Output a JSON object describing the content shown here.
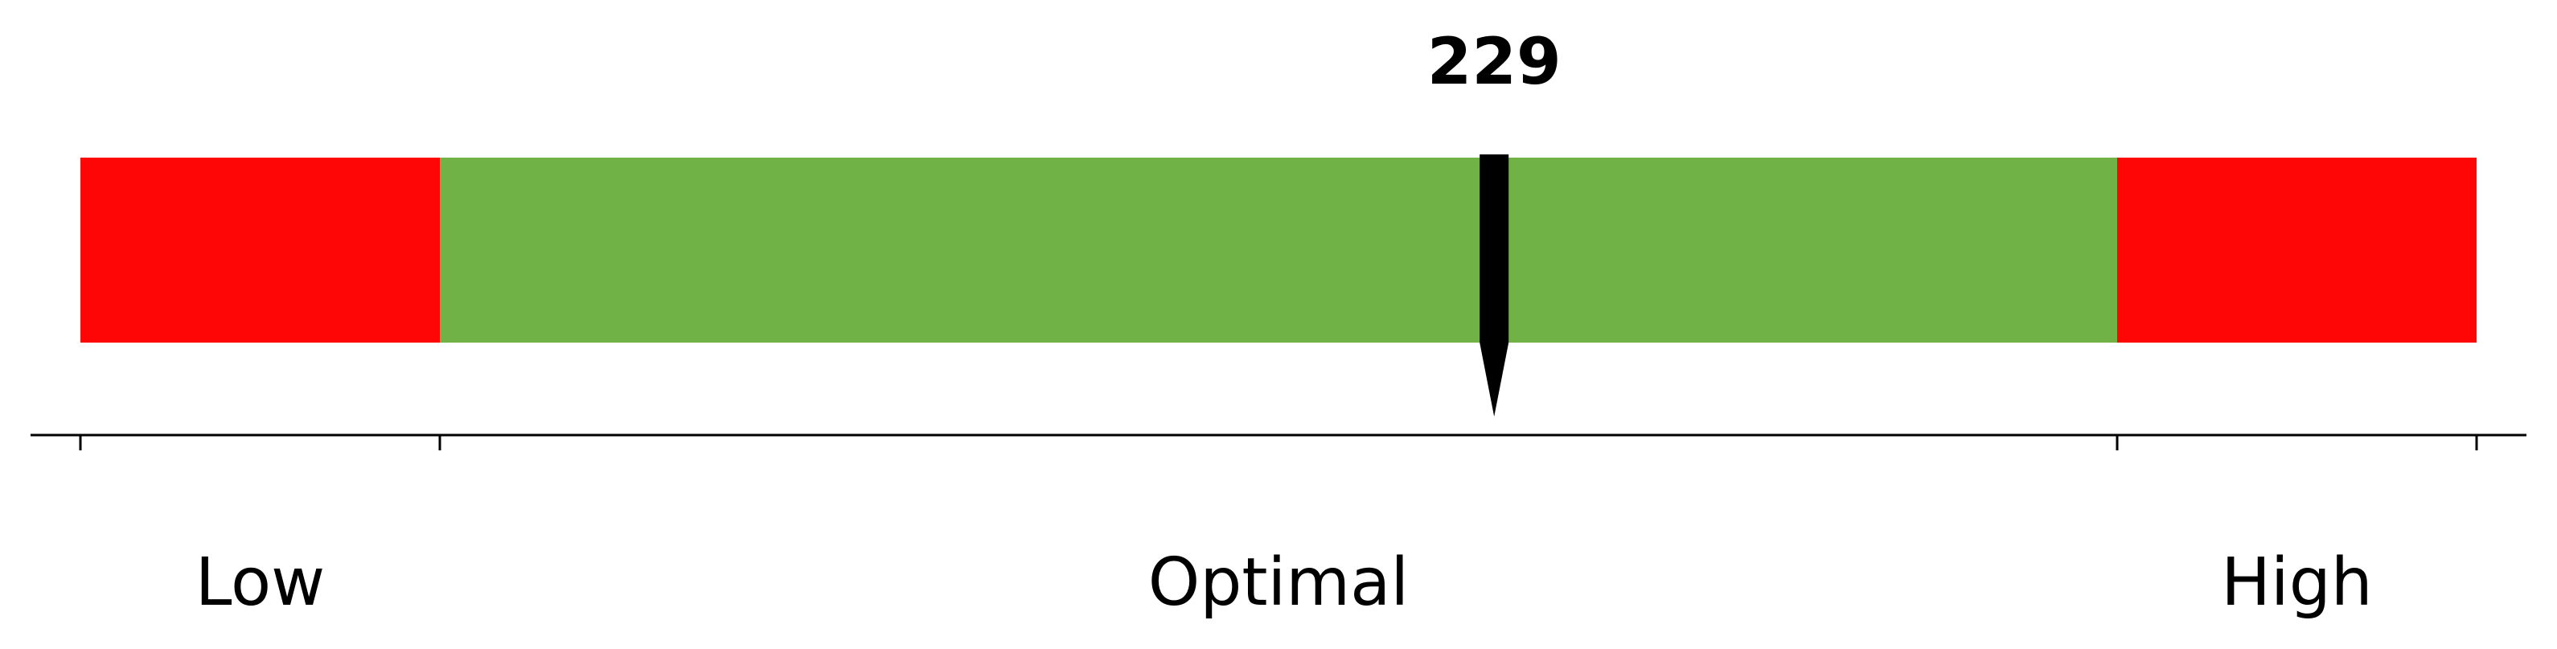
{
  "chart_data": {
    "type": "bullet-gauge",
    "value": 229,
    "value_label": "229",
    "x_range": [
      0,
      100
    ],
    "zones": [
      {
        "name": "Low",
        "from": 0,
        "to": 15,
        "color": "#ff0606"
      },
      {
        "name": "Optimal",
        "from": 15,
        "to": 85,
        "color": "#70b245"
      },
      {
        "name": "High",
        "from": 85,
        "to": 100,
        "color": "#ff0606"
      }
    ],
    "marker_position": 59,
    "tick_positions": [
      0,
      15,
      85,
      100
    ],
    "marker_color": "#000000",
    "axis_color": "#000000"
  }
}
